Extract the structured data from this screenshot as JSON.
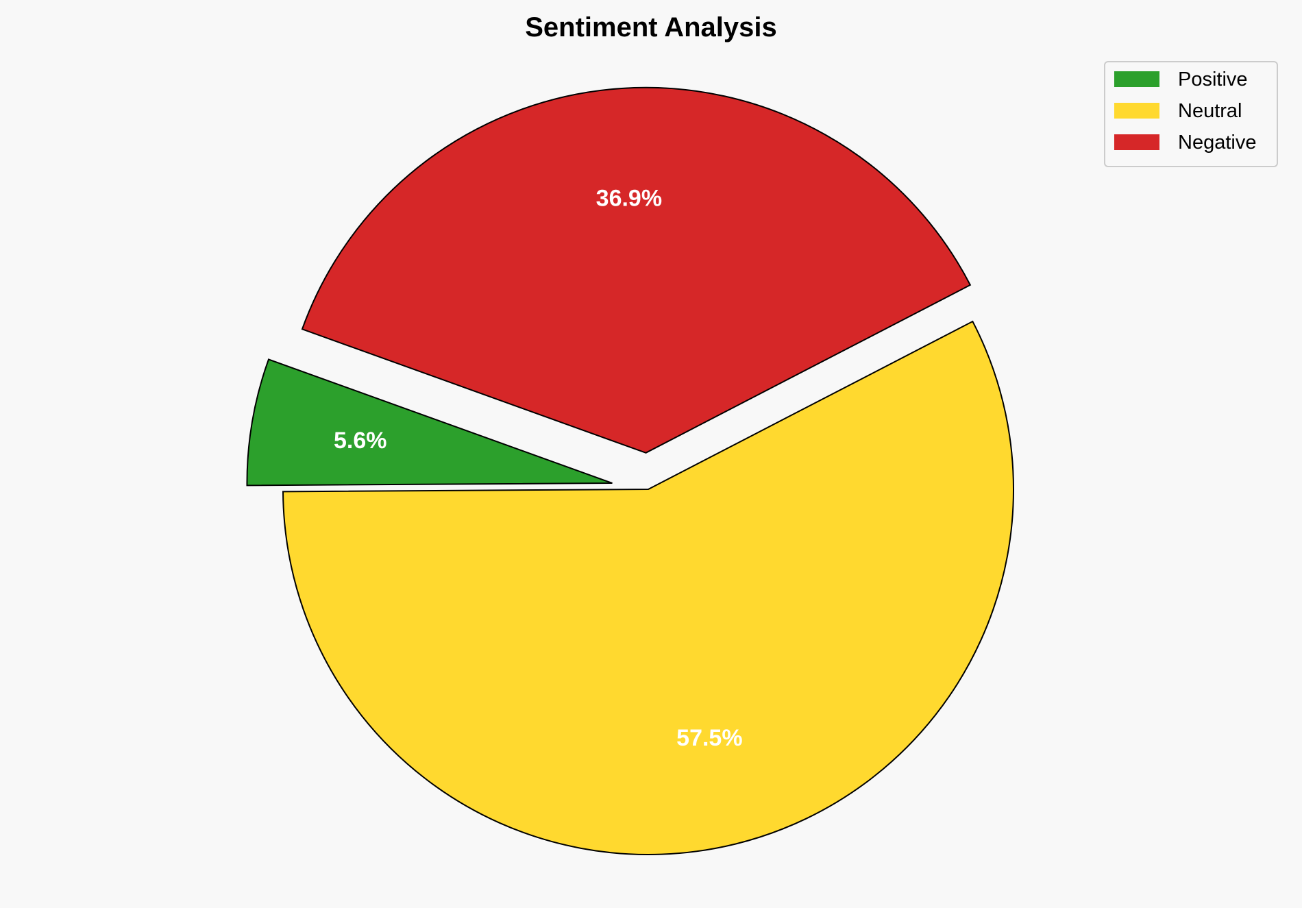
{
  "chart_data": {
    "type": "pie",
    "title": "Sentiment Analysis",
    "categories": [
      "Positive",
      "Neutral",
      "Negative"
    ],
    "values": [
      5.6,
      57.5,
      36.9
    ],
    "value_labels": [
      "5.6%",
      "57.5%",
      "36.9%"
    ],
    "colors": [
      "#2ca02c",
      "#ffd92f",
      "#d62728"
    ],
    "explode": [
      0.1,
      0,
      0.1
    ],
    "start_angle_deg": 160.2,
    "direction": "counterclockwise",
    "edge_color": "#000000",
    "background": "#f8f8f8",
    "legend": {
      "placement": "top-right",
      "entries": [
        "Positive",
        "Neutral",
        "Negative"
      ]
    }
  }
}
